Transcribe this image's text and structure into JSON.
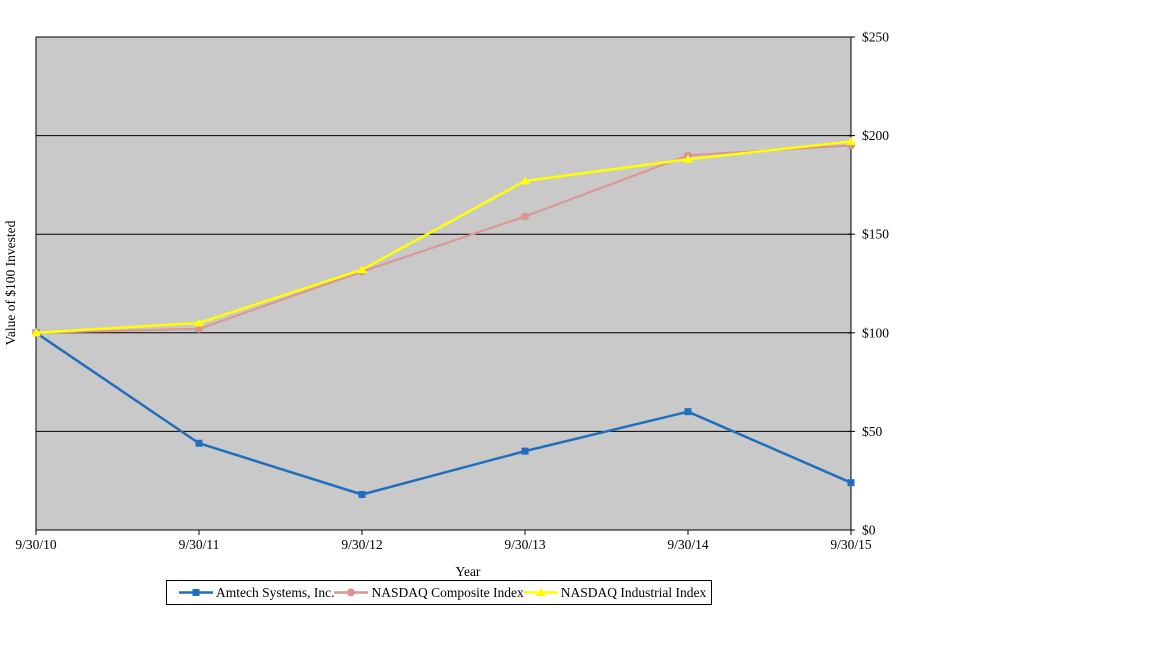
{
  "chart_data": {
    "type": "line",
    "title": "",
    "xlabel": "Year",
    "ylabel": "Value of $100 Invested",
    "categories": [
      "9/30/10",
      "9/30/11",
      "9/30/12",
      "9/30/13",
      "9/30/14",
      "9/30/15"
    ],
    "y_tick_labels": [
      "$0",
      "$50",
      "$100",
      "$150",
      "$200",
      "$250"
    ],
    "ylim": [
      0,
      250
    ],
    "y_tick_step": 50,
    "grid": "horizontal",
    "legend_position": "bottom",
    "plot_bg_color": "#C9C9C9",
    "grid_color": "#000000",
    "axis_color": "#000000",
    "series": [
      {
        "name": "Amtech Systems, Inc.",
        "color": "#1F6FBE",
        "marker": "square",
        "values": [
          100,
          44,
          18,
          40,
          60,
          24
        ]
      },
      {
        "name": "NASDAQ Composite Index",
        "color": "#D99694",
        "marker": "circle",
        "values": [
          100,
          102,
          131,
          159,
          190,
          195
        ]
      },
      {
        "name": "NASDAQ Industrial Index",
        "color": "#FFFF00",
        "marker": "triangle",
        "values": [
          100,
          105,
          132,
          177,
          188,
          197
        ]
      }
    ]
  }
}
